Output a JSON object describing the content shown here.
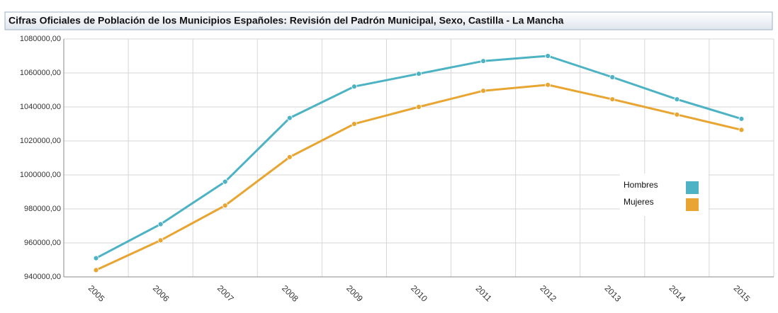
{
  "chart_data": {
    "type": "line",
    "title": "Cifras Oficiales de Población de los Municipios Españoles: Revisión del Padrón Municipal, Sexo, Castilla - La Mancha",
    "categories": [
      "2005",
      "2006",
      "2007",
      "2008",
      "2009",
      "2010",
      "2011",
      "2012",
      "2013",
      "2014",
      "2015"
    ],
    "series": [
      {
        "name": "Hombres",
        "color": "#4db3c4",
        "values": [
          951000,
          971000,
          996000,
          1033500,
          1052000,
          1059500,
          1067000,
          1070000,
          1057500,
          1044500,
          1033000
        ]
      },
      {
        "name": "Mujeres",
        "color": "#e8a532",
        "values": [
          944000,
          961500,
          982000,
          1010500,
          1030000,
          1040000,
          1049500,
          1053000,
          1044500,
          1035500,
          1026500
        ]
      }
    ],
    "ylim": [
      940000,
      1080000
    ],
    "yticks": [
      {
        "value": 940000,
        "label": "940000,00"
      },
      {
        "value": 960000,
        "label": "960000,00"
      },
      {
        "value": 980000,
        "label": "980000,00"
      },
      {
        "value": 1000000,
        "label": "1000000,00"
      },
      {
        "value": 1020000,
        "label": "1020000,00"
      },
      {
        "value": 1040000,
        "label": "1040000,00"
      },
      {
        "value": 1060000,
        "label": "1060000,00"
      },
      {
        "value": 1080000,
        "label": "1080000,00"
      }
    ],
    "grid": true,
    "legend": "right"
  }
}
